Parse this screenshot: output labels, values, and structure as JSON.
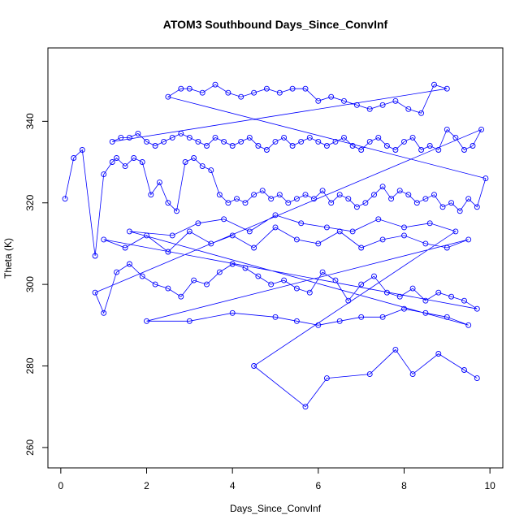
{
  "chart_data": {
    "type": "scatter",
    "title": "ATOM3 Southbound Days_Since_ConvInf",
    "xlabel": "Days_Since_ConvInf",
    "ylabel": "Theta (K)",
    "xlim": [
      -0.3,
      10.3
    ],
    "ylim": [
      255,
      358
    ],
    "x_ticks": [
      0,
      2,
      4,
      6,
      8,
      10
    ],
    "y_ticks": [
      260,
      280,
      300,
      320,
      340
    ],
    "grid": false,
    "point_style": "open-circle",
    "line_style": "connected",
    "color": "#0000ff",
    "series": [
      {
        "x": [
          0.1,
          0.3,
          0.5,
          0.8,
          1.0,
          1.2,
          1.3,
          1.5,
          1.7,
          1.9,
          2.1,
          2.3,
          2.5,
          2.7,
          2.9,
          3.1,
          3.3,
          3.5,
          3.7,
          3.9,
          4.1,
          4.3,
          4.5,
          4.7,
          4.9,
          5.1,
          5.3,
          5.5,
          5.7,
          5.9,
          6.1,
          6.3,
          6.5,
          6.7,
          6.9,
          7.1,
          7.3,
          7.5,
          7.7,
          7.9,
          8.1,
          8.3,
          8.5,
          8.7,
          8.9,
          9.1,
          9.3,
          9.5,
          9.7,
          9.9,
          2.5,
          2.8,
          3.0,
          3.3,
          3.6,
          3.9,
          4.2,
          4.5,
          4.8,
          5.1,
          5.4,
          5.7,
          6.0,
          6.3,
          6.6,
          6.9,
          7.2,
          7.5,
          7.8,
          8.1,
          8.4,
          8.7,
          9.0,
          1.2,
          1.4,
          1.6,
          1.8,
          2.0,
          2.2,
          2.4,
          2.6,
          2.8,
          3.0,
          3.2,
          3.4,
          3.6,
          3.8,
          4.0,
          4.2,
          4.4,
          4.6,
          4.8,
          5.0,
          5.2,
          5.4,
          5.6,
          5.8,
          6.0,
          6.2,
          6.4,
          6.6,
          6.8,
          7.0,
          7.2,
          7.4,
          7.6,
          7.8,
          8.0,
          8.2,
          8.4,
          8.6,
          8.8,
          9.0,
          9.2,
          9.4,
          9.6,
          9.8,
          0.8,
          1.0,
          1.3,
          1.6,
          1.9,
          2.2,
          2.5,
          2.8,
          3.1,
          3.4,
          3.7,
          4.0,
          4.3,
          4.6,
          4.9,
          5.2,
          5.5,
          5.8,
          6.1,
          6.4,
          6.7,
          7.0,
          7.3,
          7.6,
          7.9,
          8.2,
          8.5,
          8.8,
          9.1,
          9.4,
          9.7,
          1.0,
          1.5,
          2.0,
          2.5,
          3.0,
          3.5,
          4.0,
          4.5,
          5.0,
          5.5,
          6.0,
          6.5,
          7.0,
          7.5,
          8.0,
          8.5,
          9.0,
          9.5,
          2.0,
          3.0,
          4.0,
          5.0,
          5.5,
          6.0,
          6.5,
          7.0,
          7.5,
          8.0,
          8.5,
          9.0,
          9.5,
          1.6,
          2.6,
          3.2,
          3.8,
          4.4,
          5.0,
          5.6,
          6.2,
          6.8,
          7.4,
          8.0,
          8.6,
          9.2,
          4.5,
          5.7,
          6.2,
          7.2,
          7.8,
          8.2,
          8.8,
          9.4,
          9.7
        ],
        "y": [
          321,
          331,
          333,
          307,
          327,
          330,
          331,
          329,
          331,
          330,
          322,
          325,
          320,
          318,
          330,
          331,
          329,
          328,
          322,
          320,
          321,
          320,
          322,
          323,
          321,
          322,
          320,
          321,
          322,
          321,
          323,
          320,
          322,
          321,
          319,
          320,
          322,
          324,
          321,
          323,
          322,
          320,
          321,
          322,
          319,
          320,
          318,
          321,
          319,
          326,
          346,
          348,
          348,
          347,
          349,
          347,
          346,
          347,
          348,
          347,
          348,
          348,
          345,
          346,
          345,
          344,
          343,
          344,
          345,
          343,
          342,
          349,
          348,
          335,
          336,
          336,
          337,
          335,
          334,
          335,
          336,
          337,
          336,
          335,
          334,
          336,
          335,
          334,
          335,
          336,
          334,
          333,
          335,
          336,
          334,
          335,
          336,
          335,
          334,
          335,
          336,
          334,
          333,
          335,
          336,
          334,
          333,
          335,
          336,
          333,
          334,
          333,
          338,
          336,
          333,
          334,
          338,
          298,
          293,
          303,
          305,
          302,
          300,
          299,
          297,
          301,
          300,
          303,
          305,
          304,
          302,
          300,
          301,
          299,
          298,
          303,
          301,
          296,
          300,
          302,
          298,
          297,
          299,
          296,
          298,
          297,
          296,
          294,
          311,
          309,
          312,
          308,
          313,
          310,
          312,
          309,
          314,
          311,
          310,
          313,
          309,
          311,
          312,
          310,
          309,
          311,
          291,
          291,
          293,
          292,
          291,
          290,
          291,
          292,
          292,
          294,
          293,
          292,
          290,
          313,
          312,
          315,
          316,
          313,
          317,
          315,
          314,
          313,
          316,
          314,
          315,
          313,
          280,
          270,
          277,
          278,
          284,
          278,
          283,
          279,
          277
        ]
      }
    ]
  }
}
